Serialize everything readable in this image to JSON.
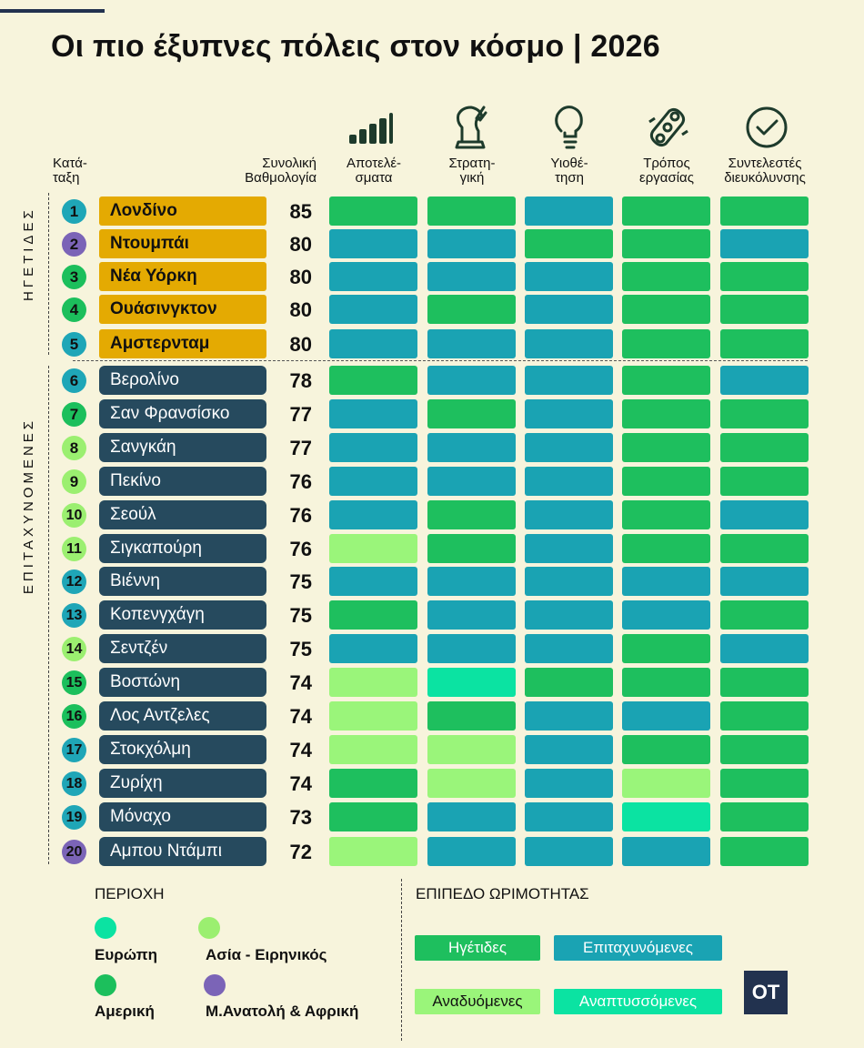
{
  "title": "Οι πιο έξυπνες πόλεις στον κόσμο | 2026",
  "headers": {
    "rank": [
      "Κατά-",
      "ταξη"
    ],
    "total": [
      "Συνολική",
      "Βαθμολογία"
    ],
    "categories": [
      {
        "lines": [
          "Αποτελέ-",
          "σματα"
        ],
        "icon": "bar-chart-icon"
      },
      {
        "lines": [
          "Στρατη-",
          "γική"
        ],
        "icon": "chess-knight-icon"
      },
      {
        "lines": [
          "Υιοθέ-",
          "τηση"
        ],
        "icon": "lightbulb-icon"
      },
      {
        "lines": [
          "Τρόπος",
          "εργασίας"
        ],
        "icon": "puzzle-icon"
      },
      {
        "lines": [
          "Συντελεστές",
          "διευκόλυνσης"
        ],
        "icon": "checkmark-circle-icon"
      }
    ]
  },
  "groups": {
    "leaders": "ΗΓΕΤΙΔΕΣ",
    "fast": "ΕΠΙΤΑΧΥΝΟΜΕΝΕΣ"
  },
  "colors": {
    "regions": {
      "europe": "#1fa6b7",
      "asia": "#9bef70",
      "america": "#1cbf5c",
      "mea": "#7b64b7"
    },
    "levels": {
      "leader": "#1ebf5e",
      "fast": "#1aa3b3",
      "emerging": "#9af57a",
      "developing": "#0be3a2"
    },
    "leader_name_bg": "#e4aa02",
    "fast_name_bg": "#264a5e"
  },
  "chart_data": {
    "type": "table",
    "columns": [
      "Κατάταξη",
      "Πόλη",
      "Συνολική Βαθμολογία",
      "Αποτελέσματα",
      "Στρατηγική",
      "Υιοθέτηση",
      "Τρόπος εργασίας",
      "Συντελεστές διευκόλυνσης"
    ],
    "rows": [
      {
        "rank": "1",
        "city": "Λονδίνο",
        "score": "85",
        "group": "leaders",
        "region": "europe",
        "levels": [
          "leader",
          "leader",
          "fast",
          "leader",
          "leader"
        ]
      },
      {
        "rank": "2",
        "city": "Ντουμπάι",
        "score": "80",
        "group": "leaders",
        "region": "mea",
        "levels": [
          "fast",
          "fast",
          "leader",
          "leader",
          "fast"
        ]
      },
      {
        "rank": "3",
        "city": "Νέα Υόρκη",
        "score": "80",
        "group": "leaders",
        "region": "america",
        "levels": [
          "fast",
          "fast",
          "fast",
          "leader",
          "leader"
        ]
      },
      {
        "rank": "4",
        "city": "Ουάσινγκτον",
        "score": "80",
        "group": "leaders",
        "region": "america",
        "levels": [
          "fast",
          "leader",
          "fast",
          "leader",
          "leader"
        ]
      },
      {
        "rank": "5",
        "city": "Αμστερνταμ",
        "score": "80",
        "group": "leaders",
        "region": "europe",
        "levels": [
          "fast",
          "fast",
          "fast",
          "leader",
          "leader"
        ]
      },
      {
        "rank": "6",
        "city": "Βερολίνο",
        "score": "78",
        "group": "fast",
        "region": "europe",
        "levels": [
          "leader",
          "fast",
          "fast",
          "leader",
          "fast"
        ]
      },
      {
        "rank": "7",
        "city": "Σαν Φρανσίσκο",
        "score": "77",
        "group": "fast",
        "region": "america",
        "levels": [
          "fast",
          "leader",
          "fast",
          "leader",
          "leader"
        ]
      },
      {
        "rank": "8",
        "city": "Σανγκάη",
        "score": "77",
        "group": "fast",
        "region": "asia",
        "levels": [
          "fast",
          "fast",
          "fast",
          "leader",
          "leader"
        ]
      },
      {
        "rank": "9",
        "city": "Πεκίνο",
        "score": "76",
        "group": "fast",
        "region": "asia",
        "levels": [
          "fast",
          "fast",
          "fast",
          "leader",
          "leader"
        ]
      },
      {
        "rank": "10",
        "city": "Σεούλ",
        "score": "76",
        "group": "fast",
        "region": "asia",
        "levels": [
          "fast",
          "leader",
          "fast",
          "leader",
          "fast"
        ]
      },
      {
        "rank": "11",
        "city": "Σιγκαπούρη",
        "score": "76",
        "group": "fast",
        "region": "asia",
        "levels": [
          "emerging",
          "leader",
          "fast",
          "leader",
          "leader"
        ]
      },
      {
        "rank": "12",
        "city": "Βιέννη",
        "score": "75",
        "group": "fast",
        "region": "europe",
        "levels": [
          "fast",
          "fast",
          "fast",
          "fast",
          "fast"
        ]
      },
      {
        "rank": "13",
        "city": "Κοπενγχάγη",
        "score": "75",
        "group": "fast",
        "region": "europe",
        "levels": [
          "leader",
          "fast",
          "fast",
          "fast",
          "leader"
        ]
      },
      {
        "rank": "14",
        "city": "Σεντζέν",
        "score": "75",
        "group": "fast",
        "region": "asia",
        "levels": [
          "fast",
          "fast",
          "fast",
          "leader",
          "fast"
        ]
      },
      {
        "rank": "15",
        "city": "Βοστώνη",
        "score": "74",
        "group": "fast",
        "region": "america",
        "levels": [
          "emerging",
          "developing",
          "leader",
          "leader",
          "leader"
        ]
      },
      {
        "rank": "16",
        "city": "Λος Αντζελες",
        "score": "74",
        "group": "fast",
        "region": "america",
        "levels": [
          "emerging",
          "leader",
          "fast",
          "fast",
          "leader"
        ]
      },
      {
        "rank": "17",
        "city": "Στοκχόλμη",
        "score": "74",
        "group": "fast",
        "region": "europe",
        "levels": [
          "emerging",
          "emerging",
          "fast",
          "leader",
          "leader"
        ]
      },
      {
        "rank": "18",
        "city": "Ζυρίχη",
        "score": "74",
        "group": "fast",
        "region": "europe",
        "levels": [
          "leader",
          "emerging",
          "fast",
          "emerging",
          "leader"
        ]
      },
      {
        "rank": "19",
        "city": "Μόναχο",
        "score": "73",
        "group": "fast",
        "region": "europe",
        "levels": [
          "leader",
          "fast",
          "fast",
          "developing",
          "leader"
        ]
      },
      {
        "rank": "20",
        "city": "Αμπου Ντάμπι",
        "score": "72",
        "group": "fast",
        "region": "mea",
        "levels": [
          "emerging",
          "fast",
          "fast",
          "fast",
          "leader"
        ]
      }
    ]
  },
  "legend": {
    "region_title": "ΠΕΡΙΟΧΗ",
    "regions": [
      {
        "key": "europe",
        "label": "Ευρώπη"
      },
      {
        "key": "asia",
        "label": "Ασία - Ειρηνικός"
      },
      {
        "key": "america",
        "label": "Αμερική"
      },
      {
        "key": "mea",
        "label": "Μ.Ανατολή & Αφρική"
      }
    ],
    "level_title": "ΕΠΙΠΕΔΟ ΩΡΙΜΟΤΗΤΑΣ",
    "levels": [
      {
        "key": "leader",
        "label": "Ηγέτιδες"
      },
      {
        "key": "fast",
        "label": "Επιταχυνόμενες"
      },
      {
        "key": "emerging",
        "label": "Αναδυόμενες"
      },
      {
        "key": "developing",
        "label": "Αναπτυσσόμενες"
      }
    ]
  },
  "logo": "OT"
}
